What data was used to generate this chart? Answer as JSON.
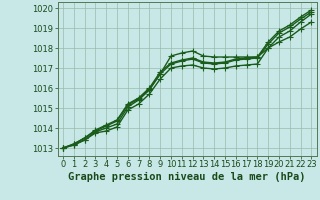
{
  "background_color": "#c8e8e8",
  "plot_bg_color": "#c8e8e8",
  "grid_color": "#99bbaa",
  "line_color": "#1a5c1a",
  "marker_color": "#1a5c1a",
  "title": "Graphe pression niveau de la mer (hPa)",
  "title_fontsize": 7.5,
  "tick_fontsize": 6,
  "ylim": [
    1012.6,
    1020.3
  ],
  "xlim": [
    -0.5,
    23.5
  ],
  "yticks": [
    1013,
    1014,
    1015,
    1016,
    1017,
    1018,
    1019,
    1020
  ],
  "xticks": [
    0,
    1,
    2,
    3,
    4,
    5,
    6,
    7,
    8,
    9,
    10,
    11,
    12,
    13,
    14,
    15,
    16,
    17,
    18,
    19,
    20,
    21,
    22,
    23
  ],
  "series": [
    {
      "x": [
        0,
        1,
        2,
        3,
        4,
        5,
        6,
        7,
        8,
        9,
        10,
        11,
        12,
        13,
        14,
        15,
        16,
        17,
        18,
        19,
        20,
        21,
        22,
        23
      ],
      "y": [
        1013.0,
        1013.15,
        1013.4,
        1013.75,
        1013.85,
        1014.05,
        1014.9,
        1015.2,
        1015.7,
        1016.45,
        1017.0,
        1017.1,
        1017.15,
        1017.0,
        1016.95,
        1017.0,
        1017.1,
        1017.15,
        1017.2,
        1018.0,
        1018.55,
        1018.85,
        1019.3,
        1019.7
      ],
      "marker": "+",
      "markersize": 4,
      "linewidth": 1.0
    },
    {
      "x": [
        0,
        1,
        2,
        3,
        4,
        5,
        6,
        7,
        8,
        9,
        10,
        11,
        12,
        13,
        14,
        15,
        16,
        17,
        18,
        19,
        20,
        21,
        22,
        23
      ],
      "y": [
        1013.0,
        1013.15,
        1013.4,
        1013.8,
        1014.0,
        1014.2,
        1015.05,
        1015.4,
        1015.9,
        1016.7,
        1017.6,
        1017.75,
        1017.85,
        1017.6,
        1017.55,
        1017.55,
        1017.55,
        1017.55,
        1017.55,
        1018.0,
        1018.3,
        1018.55,
        1018.95,
        1019.3
      ],
      "marker": "+",
      "markersize": 4,
      "linewidth": 1.0
    },
    {
      "x": [
        0,
        1,
        2,
        3,
        4,
        5,
        6,
        7,
        8,
        9,
        10,
        11,
        12,
        13,
        14,
        15,
        16,
        17,
        18,
        19,
        20,
        21,
        22,
        23
      ],
      "y": [
        1013.0,
        1013.2,
        1013.5,
        1013.85,
        1014.1,
        1014.35,
        1015.15,
        1015.45,
        1015.95,
        1016.7,
        1017.2,
        1017.35,
        1017.45,
        1017.25,
        1017.2,
        1017.25,
        1017.4,
        1017.45,
        1017.5,
        1018.2,
        1018.75,
        1019.05,
        1019.45,
        1019.8
      ],
      "marker": "+",
      "markersize": 4,
      "linewidth": 1.0
    },
    {
      "x": [
        0,
        1,
        2,
        3,
        4,
        5,
        6,
        7,
        8,
        9,
        10,
        11,
        12,
        13,
        14,
        15,
        16,
        17,
        18,
        19,
        20,
        21,
        22,
        23
      ],
      "y": [
        1013.0,
        1013.2,
        1013.5,
        1013.9,
        1014.15,
        1014.4,
        1015.2,
        1015.5,
        1016.0,
        1016.8,
        1017.25,
        1017.4,
        1017.5,
        1017.3,
        1017.25,
        1017.3,
        1017.45,
        1017.5,
        1017.55,
        1018.3,
        1018.85,
        1019.15,
        1019.55,
        1019.9
      ],
      "marker": "+",
      "markersize": 4,
      "linewidth": 1.0
    }
  ]
}
